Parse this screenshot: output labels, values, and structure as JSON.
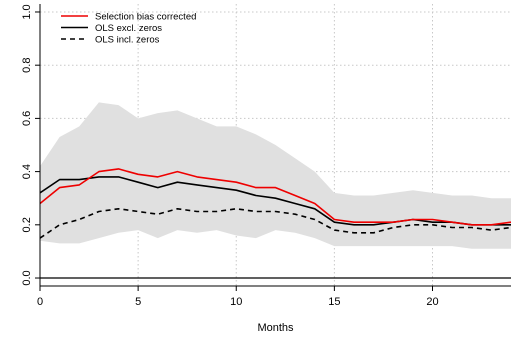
{
  "chart_data": {
    "type": "line",
    "title": "",
    "xlabel": "Months",
    "ylabel": "",
    "xlim": [
      0,
      24
    ],
    "ylim": [
      -0.03,
      1.03
    ],
    "x_ticks": [
      0,
      5,
      10,
      15,
      20
    ],
    "y_ticks": [
      0.0,
      0.2,
      0.4,
      0.6,
      0.8,
      1.0
    ],
    "y_tick_labels": [
      "0.0",
      "0.2",
      "0.4",
      "0.6",
      "0.8",
      "1.0"
    ],
    "grid": "dotted",
    "reference_line": 0,
    "legend_position": "top-left",
    "x": [
      0,
      1,
      2,
      3,
      4,
      5,
      6,
      7,
      8,
      9,
      10,
      11,
      12,
      13,
      14,
      15,
      16,
      17,
      18,
      19,
      20,
      21,
      22,
      23,
      24
    ],
    "band": {
      "color": "#e0e0e0",
      "lower": [
        0.14,
        0.13,
        0.13,
        0.15,
        0.17,
        0.18,
        0.15,
        0.18,
        0.17,
        0.18,
        0.16,
        0.15,
        0.18,
        0.17,
        0.15,
        0.12,
        0.12,
        0.12,
        0.12,
        0.12,
        0.12,
        0.12,
        0.11,
        0.11,
        0.11
      ],
      "upper": [
        0.42,
        0.53,
        0.57,
        0.66,
        0.65,
        0.6,
        0.62,
        0.63,
        0.6,
        0.57,
        0.57,
        0.54,
        0.5,
        0.45,
        0.4,
        0.32,
        0.31,
        0.31,
        0.32,
        0.33,
        0.32,
        0.31,
        0.31,
        0.3,
        0.3
      ]
    },
    "series": [
      {
        "name": "Selection bias corrected",
        "color": "#ee0000",
        "dash": "solid",
        "values": [
          0.28,
          0.34,
          0.35,
          0.4,
          0.41,
          0.39,
          0.38,
          0.4,
          0.38,
          0.37,
          0.36,
          0.34,
          0.34,
          0.31,
          0.28,
          0.22,
          0.21,
          0.21,
          0.21,
          0.22,
          0.22,
          0.21,
          0.2,
          0.2,
          0.21
        ]
      },
      {
        "name": "OLS excl. zeros",
        "color": "#000000",
        "dash": "solid",
        "values": [
          0.32,
          0.37,
          0.37,
          0.38,
          0.38,
          0.36,
          0.34,
          0.36,
          0.35,
          0.34,
          0.33,
          0.31,
          0.3,
          0.28,
          0.26,
          0.21,
          0.2,
          0.2,
          0.21,
          0.22,
          0.21,
          0.21,
          0.2,
          0.2,
          0.2
        ]
      },
      {
        "name": "OLS incl. zeros",
        "color": "#000000",
        "dash": "dashed",
        "values": [
          0.15,
          0.2,
          0.22,
          0.25,
          0.26,
          0.25,
          0.24,
          0.26,
          0.25,
          0.25,
          0.26,
          0.25,
          0.25,
          0.24,
          0.22,
          0.18,
          0.17,
          0.17,
          0.19,
          0.2,
          0.2,
          0.19,
          0.19,
          0.18,
          0.19
        ]
      }
    ]
  }
}
